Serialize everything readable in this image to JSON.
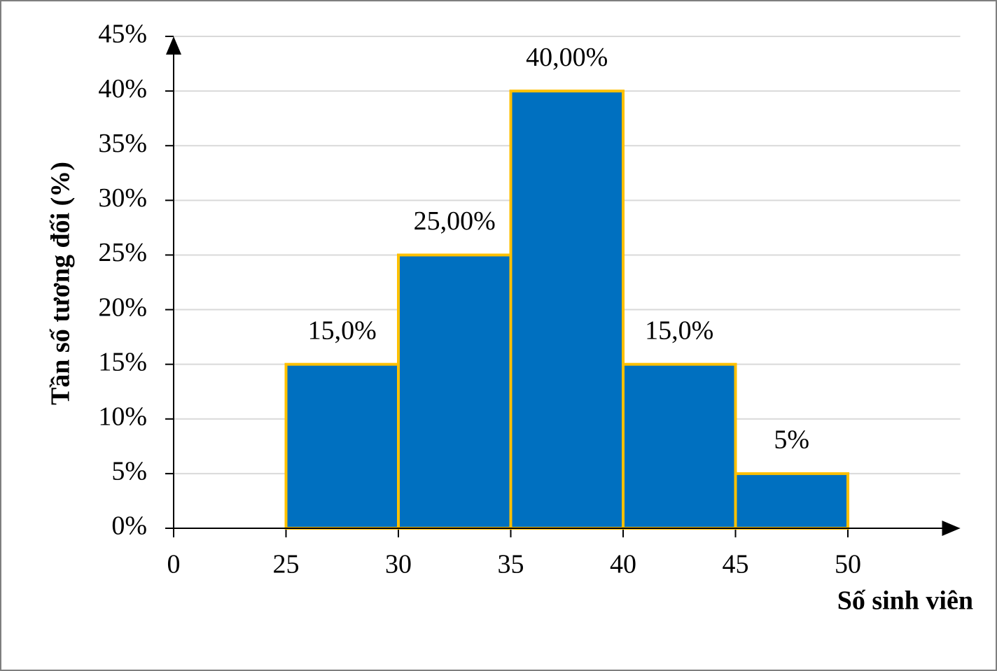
{
  "chart_data": {
    "type": "histogram",
    "x_label": "Số sinh viên",
    "y_label": "Tần số tương đối (%)",
    "bins": [
      25,
      30,
      35,
      40,
      45,
      50
    ],
    "values": [
      15,
      25,
      40,
      15,
      5
    ],
    "value_labels": [
      "15,0%",
      "25,00%",
      "40,00%",
      "15,0%",
      "5%"
    ],
    "color": "#0070c0",
    "edge_color": "#ffc000",
    "xlim": [
      0,
      55
    ],
    "xticks": [
      0,
      25,
      30,
      35,
      40,
      45,
      50
    ],
    "ylim": [
      0,
      45
    ],
    "yticks": [
      {
        "value": 0,
        "label": "0%"
      },
      {
        "value": 5,
        "label": "5%"
      },
      {
        "value": 10,
        "label": "10%"
      },
      {
        "value": 15,
        "label": "15%"
      },
      {
        "value": 20,
        "label": "20%"
      },
      {
        "value": 25,
        "label": "25%"
      },
      {
        "value": 30,
        "label": "30%"
      },
      {
        "value": 35,
        "label": "35%"
      },
      {
        "value": 40,
        "label": "40%"
      },
      {
        "value": 45,
        "label": "45%"
      }
    ],
    "grid": true
  }
}
